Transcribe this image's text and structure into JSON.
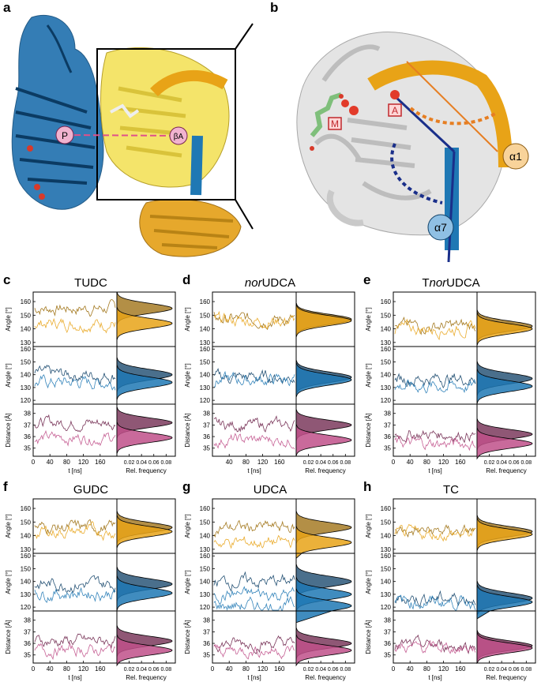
{
  "panel_letters": [
    "a",
    "b",
    "c",
    "d",
    "e",
    "f",
    "g",
    "h"
  ],
  "structure_a": {
    "label_p": "P",
    "label_ba": "βA"
  },
  "structure_b": {
    "label_a": "A",
    "label_m": "M",
    "label_a1": "α1",
    "label_a7": "α7"
  },
  "colors": {
    "orange": "#e8a317",
    "blue": "#1f78b4",
    "pink": "#c0508a",
    "yellow": "#f4e46a",
    "gray": "#d8d8d8",
    "red": "#e23b2a"
  },
  "axis_labels": {
    "angle": "Angle [°]",
    "distance": "Distance [Å]",
    "time": "t [ns]",
    "freq": "Rel. frequency"
  },
  "ticks": {
    "angle_orange": [
      "160",
      "150",
      "140",
      "130"
    ],
    "angle_blue": [
      "160",
      "150",
      "140",
      "130",
      "120"
    ],
    "distance": [
      "38",
      "37",
      "36",
      "35"
    ],
    "time_a": [
      "0",
      "40",
      "80",
      "120",
      "160"
    ],
    "time_b": [
      "40",
      "80",
      "120",
      "160"
    ],
    "freq": [
      "0.02",
      "0.04",
      "0.06",
      "0.08"
    ]
  },
  "panels": [
    {
      "letter": "c",
      "title_pre": "",
      "title_it": "",
      "title_post": "TUDC",
      "time_ticks": "a"
    },
    {
      "letter": "d",
      "title_pre": "",
      "title_it": "nor",
      "title_post": "UDCA",
      "time_ticks": "b"
    },
    {
      "letter": "e",
      "title_pre": "T",
      "title_it": "nor",
      "title_post": "UDCA",
      "time_ticks": "a"
    },
    {
      "letter": "f",
      "title_pre": "",
      "title_it": "",
      "title_post": "GUDC",
      "time_ticks": "a"
    },
    {
      "letter": "g",
      "title_pre": "",
      "title_it": "",
      "title_post": "UDCA",
      "time_ticks": "a"
    },
    {
      "letter": "h",
      "title_pre": "",
      "title_it": "",
      "title_post": "TC",
      "time_ticks": "a"
    }
  ],
  "chart_data": [
    {
      "type": "line",
      "title": "TUDC",
      "series": [
        {
          "quantity": "α1 angle",
          "means": [
            155,
            144
          ],
          "unit": "°"
        },
        {
          "quantity": "α7 angle",
          "means": [
            140,
            134
          ],
          "unit": "°"
        },
        {
          "quantity": "distance",
          "means": [
            37.2,
            35.9
          ],
          "unit": "Å"
        }
      ]
    },
    {
      "type": "line",
      "title": "norUDCA",
      "series": [
        {
          "quantity": "α1 angle",
          "means": [
            147,
            146
          ],
          "unit": "°"
        },
        {
          "quantity": "α7 angle",
          "means": [
            138,
            136
          ],
          "unit": "°"
        },
        {
          "quantity": "distance",
          "means": [
            37.0,
            35.7
          ],
          "unit": "Å"
        }
      ]
    },
    {
      "type": "line",
      "title": "TnorUDCA",
      "series": [
        {
          "quantity": "α1 angle",
          "means": [
            142,
            140
          ],
          "unit": "°"
        },
        {
          "quantity": "α7 angle",
          "means": [
            137,
            131
          ],
          "unit": "°"
        },
        {
          "quantity": "distance",
          "means": [
            36.2,
            35.4
          ],
          "unit": "Å"
        }
      ]
    },
    {
      "type": "line",
      "title": "GUDC",
      "series": [
        {
          "quantity": "α1 angle",
          "means": [
            146,
            143
          ],
          "unit": "°"
        },
        {
          "quantity": "α7 angle",
          "means": [
            138,
            131
          ],
          "unit": "°"
        },
        {
          "quantity": "distance",
          "means": [
            36.2,
            35.4
          ],
          "unit": "Å"
        }
      ]
    },
    {
      "type": "line",
      "title": "UDCA",
      "series": [
        {
          "quantity": "α1 angle",
          "means": [
            146,
            135
          ],
          "unit": "°"
        },
        {
          "quantity": "α7 angle",
          "means": [
            140,
            130,
            121
          ],
          "unit": "°"
        },
        {
          "quantity": "distance",
          "means": [
            36.0,
            35.4
          ],
          "unit": "Å"
        }
      ]
    },
    {
      "type": "line",
      "title": "TC",
      "series": [
        {
          "quantity": "α1 angle",
          "means": [
            143,
            141
          ],
          "unit": "°"
        },
        {
          "quantity": "α7 angle",
          "means": [
            127,
            124
          ],
          "unit": "°"
        },
        {
          "quantity": "distance",
          "means": [
            35.8,
            35.6
          ],
          "unit": "Å"
        }
      ]
    }
  ]
}
